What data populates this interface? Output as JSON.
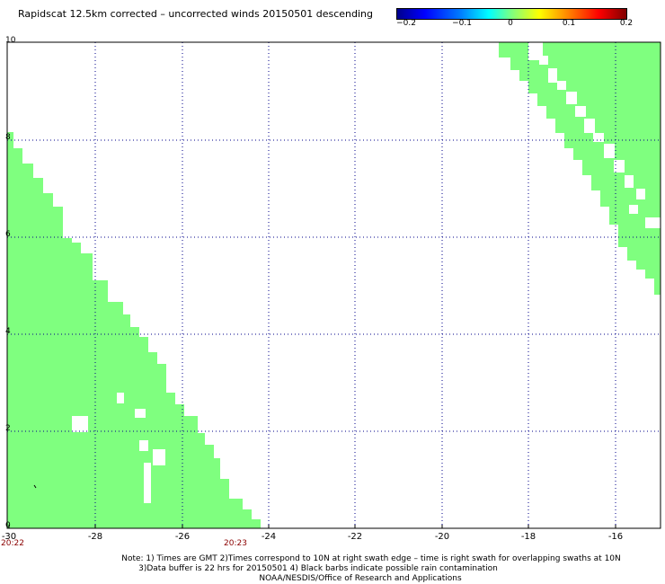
{
  "title": "Rapidscat 12.5km corrected – uncorrected winds 20150501 descending",
  "colorbar": {
    "labels": [
      "−0.2",
      "−0.1",
      "0",
      "0.1",
      "0.2"
    ],
    "colors": [
      "#00008c",
      "#0000ff",
      "#00ffff",
      "#7fff7f",
      "#ffff00",
      "#ff0000",
      "#800000"
    ]
  },
  "map": {
    "x_ticks": [
      "-30",
      "-28",
      "-26",
      "-24",
      "-22",
      "-20",
      "-18",
      "-16"
    ],
    "y_ticks": [
      "0",
      "2",
      "4",
      "6",
      "8",
      "10"
    ],
    "swath_color": "#7fff7f",
    "pass_times": [
      {
        "label": "20:22",
        "lon": -30
      },
      {
        "label": "20:23",
        "lon": -25.2
      }
    ],
    "lon_range": [
      -30,
      -15
    ],
    "lat_range": [
      0,
      10
    ]
  },
  "notes": {
    "line1": "Note: 1) Times are GMT 2)Times correspond to 10N at right swath edge – time is right swath for overlapping swaths at 10N",
    "line2": "3)Data buffer is 22 hrs for 20150501 4) Black barbs indicate possible rain contamination",
    "line3": "NOAA/NESDIS/Office of Research and Applications"
  }
}
